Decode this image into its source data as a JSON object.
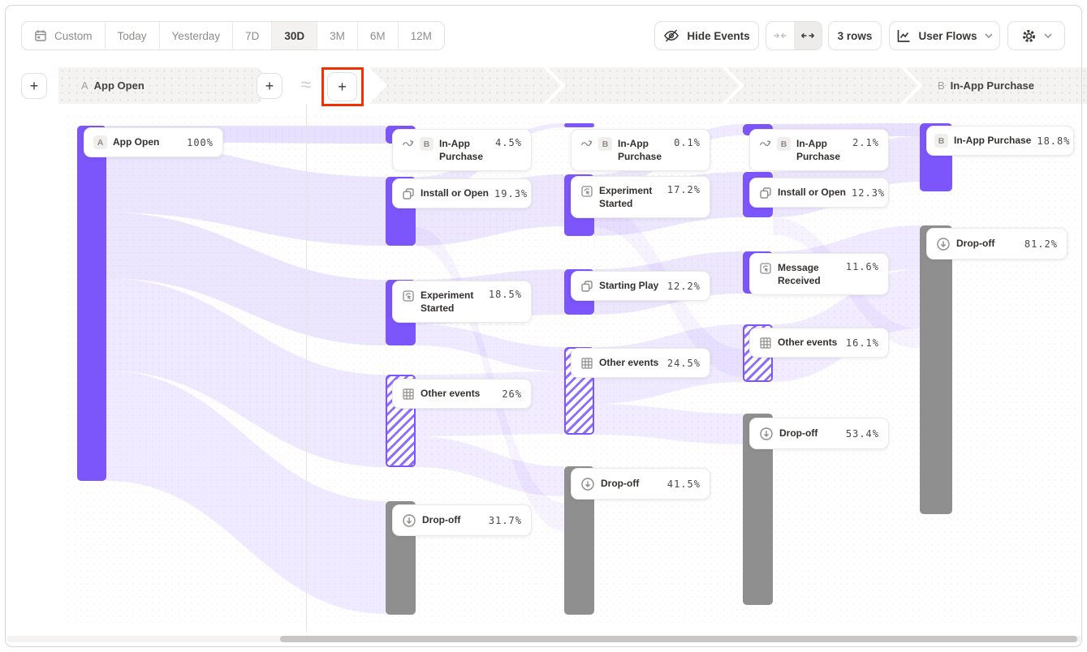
{
  "toolbar": {
    "date_ranges": [
      "Custom",
      "Today",
      "Yesterday",
      "7D",
      "30D",
      "3M",
      "6M",
      "12M"
    ],
    "active_range": "30D",
    "hide_events": "Hide Events",
    "rows": "3 rows",
    "view": "User Flows"
  },
  "header": {
    "start_badge": "A",
    "start_label": "App Open",
    "end_badge": "B",
    "end_label": "In-App Purchase",
    "approx": "≈",
    "plus": "+"
  },
  "flow": {
    "colors": {
      "event_bar": "#7c55fb",
      "dropoff_bar": "#8f8f8f",
      "ribbon": "#7c55fb",
      "annotation": "#f13100"
    },
    "columns": [
      {
        "nodes": [
          {
            "badge": "A",
            "label": "App Open",
            "value": "100%"
          }
        ]
      },
      {
        "nodes": [
          {
            "badge": "B",
            "label": "In-App Purchase",
            "value": "4.5%"
          },
          {
            "label": "Install or Open",
            "value": "19.3%"
          },
          {
            "label": "Experiment Started",
            "value": "18.5%"
          },
          {
            "label": "Other events",
            "value": "26%"
          },
          {
            "label": "Drop-off",
            "value": "31.7%"
          }
        ]
      },
      {
        "nodes": [
          {
            "badge": "B",
            "label": "In-App Purchase",
            "value": "0.1%"
          },
          {
            "label": "Experiment Started",
            "value": "17.2%"
          },
          {
            "label": "Starting Play",
            "value": "12.2%"
          },
          {
            "label": "Other events",
            "value": "24.5%"
          },
          {
            "label": "Drop-off",
            "value": "41.5%"
          }
        ]
      },
      {
        "nodes": [
          {
            "badge": "B",
            "label": "In-App Purchase",
            "value": "2.1%"
          },
          {
            "label": "Install or Open",
            "value": "12.3%"
          },
          {
            "label": "Message Received",
            "value": "11.6%"
          },
          {
            "label": "Other events",
            "value": "16.1%"
          },
          {
            "label": "Drop-off",
            "value": "53.4%"
          }
        ]
      },
      {
        "nodes": [
          {
            "badge": "B",
            "label": "In-App Purchase",
            "value": "18.8%"
          },
          {
            "label": "Drop-off",
            "value": "81.2%"
          }
        ]
      }
    ]
  }
}
